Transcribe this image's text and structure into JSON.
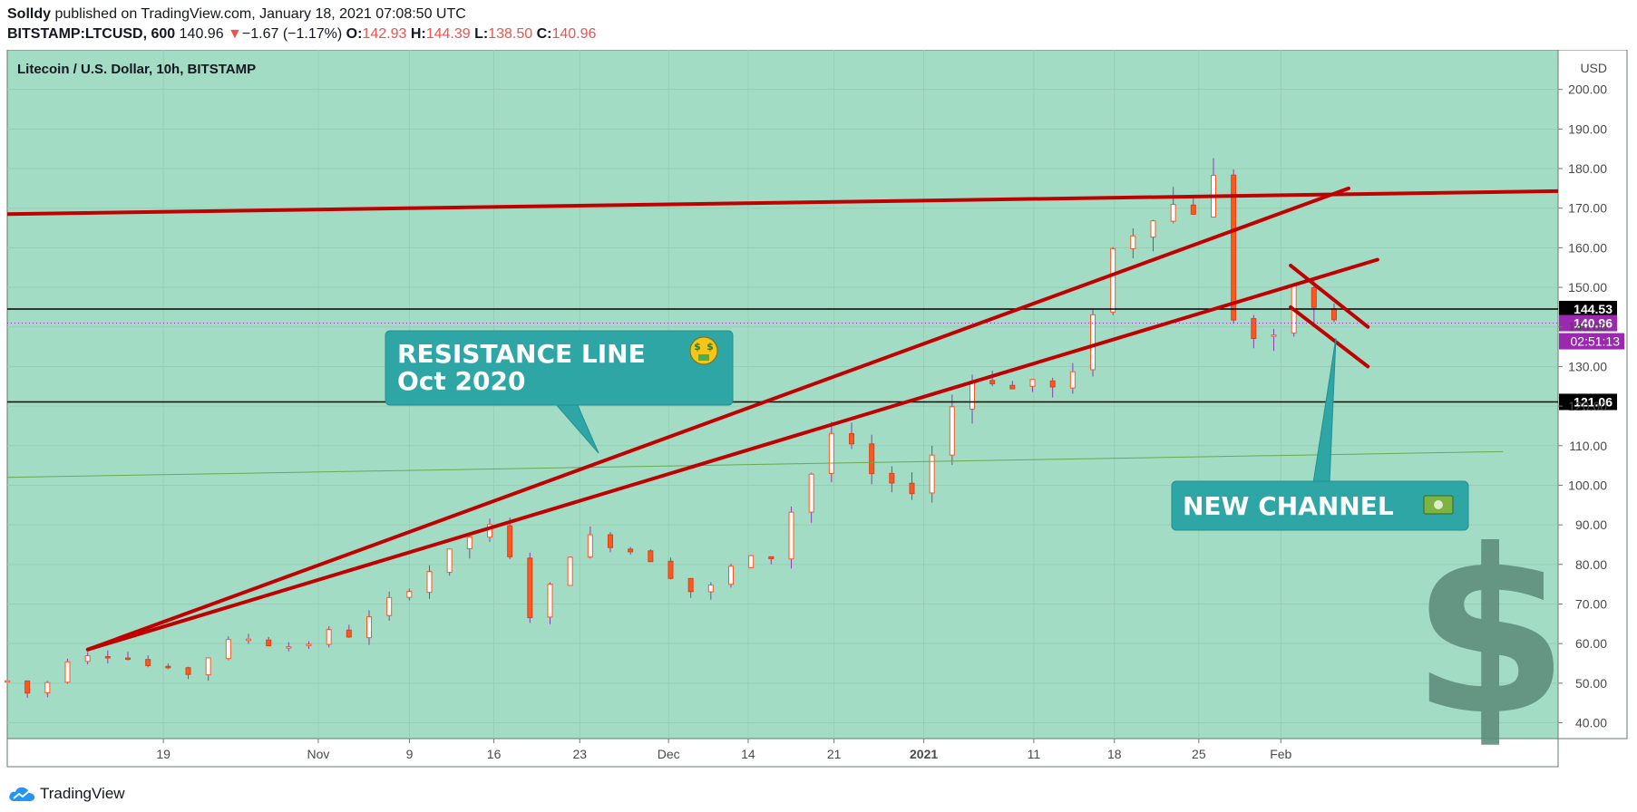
{
  "header": {
    "author": "Solldy",
    "published_text": "published on TradingView.com, January 18, 2021 07:08:50 UTC",
    "symbol": "BITSTAMP:LTCUSD, 600",
    "last": "140.96",
    "change_arrow": "▼",
    "change": "−1.67 (−1.17%)",
    "o_label": "O:",
    "o": "142.93",
    "h_label": "H:",
    "h": "144.39",
    "l_label": "L:",
    "l": "138.50",
    "c_label": "C:",
    "c": "140.96"
  },
  "chart_data": {
    "type": "candlestick",
    "title": "Litecoin / U.S. Dollar, 10h, BITSTAMP",
    "currency": "USD",
    "background": "#a3dcc4",
    "ylim": [
      36,
      210
    ],
    "y_ticks": [
      "200.00",
      "190.00",
      "180.00",
      "170.00",
      "160.00",
      "150.00",
      "140.00",
      "130.00",
      "120.00",
      "110.00",
      "100.00",
      "90.00",
      "80.00",
      "70.00",
      "60.00",
      "50.00",
      "40.00"
    ],
    "x_tick_labels": [
      {
        "label": "19",
        "bold": false
      },
      {
        "label": "Nov",
        "bold": false
      },
      {
        "label": "9",
        "bold": false
      },
      {
        "label": "16",
        "bold": false
      },
      {
        "label": "23",
        "bold": false
      },
      {
        "label": "Dec",
        "bold": false
      },
      {
        "label": "14",
        "bold": false
      },
      {
        "label": "21",
        "bold": false
      },
      {
        "label": "2021",
        "bold": true
      },
      {
        "label": "11",
        "bold": false
      },
      {
        "label": "18",
        "bold": false
      },
      {
        "label": "25",
        "bold": false
      },
      {
        "label": "Feb",
        "bold": false
      }
    ],
    "horizontal_levels": [
      {
        "value": 144.53,
        "label": "144.53",
        "color": "#000000"
      },
      {
        "value": 121.06,
        "label": "121.06",
        "color": "#000000"
      }
    ],
    "last_price": {
      "value": 140.96,
      "label": "140.96",
      "color": "#9c27b0"
    },
    "countdown": {
      "label": "02:51:13",
      "color": "#9c27b0"
    },
    "price_path": [
      [
        0,
        50.5
      ],
      [
        0.1,
        49.5
      ],
      [
        0.3,
        47.5
      ],
      [
        0.5,
        47.5
      ],
      [
        0.75,
        49
      ],
      [
        1.2,
        56
      ],
      [
        1.8,
        58
      ],
      [
        2.3,
        57
      ],
      [
        3.0,
        54
      ],
      [
        3.7,
        52
      ],
      [
        4.3,
        58
      ],
      [
        4.8,
        62
      ],
      [
        5.4,
        60
      ],
      [
        6.1,
        59
      ],
      [
        6.6,
        63
      ],
      [
        7.2,
        62
      ],
      [
        7.7,
        69
      ],
      [
        8.3,
        74
      ],
      [
        8.8,
        79
      ],
      [
        9.3,
        84
      ],
      [
        9.85,
        90
      ],
      [
        10.3,
        87
      ],
      [
        10.6,
        72
      ],
      [
        10.85,
        67
      ],
      [
        11.3,
        75
      ],
      [
        11.8,
        86
      ],
      [
        12.3,
        87
      ],
      [
        12.7,
        84
      ],
      [
        13.2,
        83
      ],
      [
        13.6,
        79
      ],
      [
        14.0,
        75
      ],
      [
        14.4,
        71
      ],
      [
        14.8,
        78
      ],
      [
        15.3,
        81
      ],
      [
        15.85,
        82
      ],
      [
        16.3,
        95
      ],
      [
        16.8,
        106
      ],
      [
        17.2,
        116
      ],
      [
        17.7,
        104
      ],
      [
        18.2,
        100
      ],
      [
        18.6,
        97
      ],
      [
        19.0,
        103
      ],
      [
        19.4,
        115
      ],
      [
        19.8,
        126
      ],
      [
        20.3,
        128
      ],
      [
        20.8,
        124
      ],
      [
        21.2,
        127
      ],
      [
        21.7,
        124
      ],
      [
        22.0,
        122
      ],
      [
        22.3,
        140
      ],
      [
        22.65,
        148
      ],
      [
        23.0,
        163
      ],
      [
        23.5,
        165
      ],
      [
        23.9,
        172
      ],
      [
        24.3,
        170
      ],
      [
        24.6,
        170
      ],
      [
        24.95,
        180
      ],
      [
        25.1,
        171
      ],
      [
        25.25,
        168
      ],
      [
        25.4,
        145
      ],
      [
        25.55,
        125
      ],
      [
        25.8,
        138
      ],
      [
        26.1,
        130
      ],
      [
        26.4,
        142
      ],
      [
        26.7,
        152
      ],
      [
        27.0,
        145
      ],
      [
        27.3,
        141
      ],
      [
        27.7,
        144
      ],
      [
        27.9,
        141
      ]
    ],
    "trend_lines": [
      {
        "from": [
          1.67,
          58.5
        ],
        "to": [
          27.8,
          175
        ]
      },
      {
        "from": [
          1.67,
          58.5
        ],
        "to": [
          28.4,
          157
        ]
      },
      {
        "from": [
          26.6,
          155.5
        ],
        "to": [
          28.2,
          140
        ]
      },
      {
        "from": [
          26.6,
          145
        ],
        "to": [
          28.2,
          130
        ]
      }
    ],
    "thin_trend": {
      "from": [
        0,
        102
      ],
      "to": [
        31,
        108.5
      ]
    },
    "annotations": [
      {
        "line1": "RESISTANCE LINE",
        "line2": "Oct 2020",
        "icon": "money-mouth-icon",
        "bg": "#2fa6a6"
      },
      {
        "line1": "NEW CHANNEL",
        "icon": "money-icon",
        "bg": "#2fa6a6"
      }
    ],
    "watermark_glyph": "$"
  },
  "footer": {
    "brand": "TradingView"
  }
}
